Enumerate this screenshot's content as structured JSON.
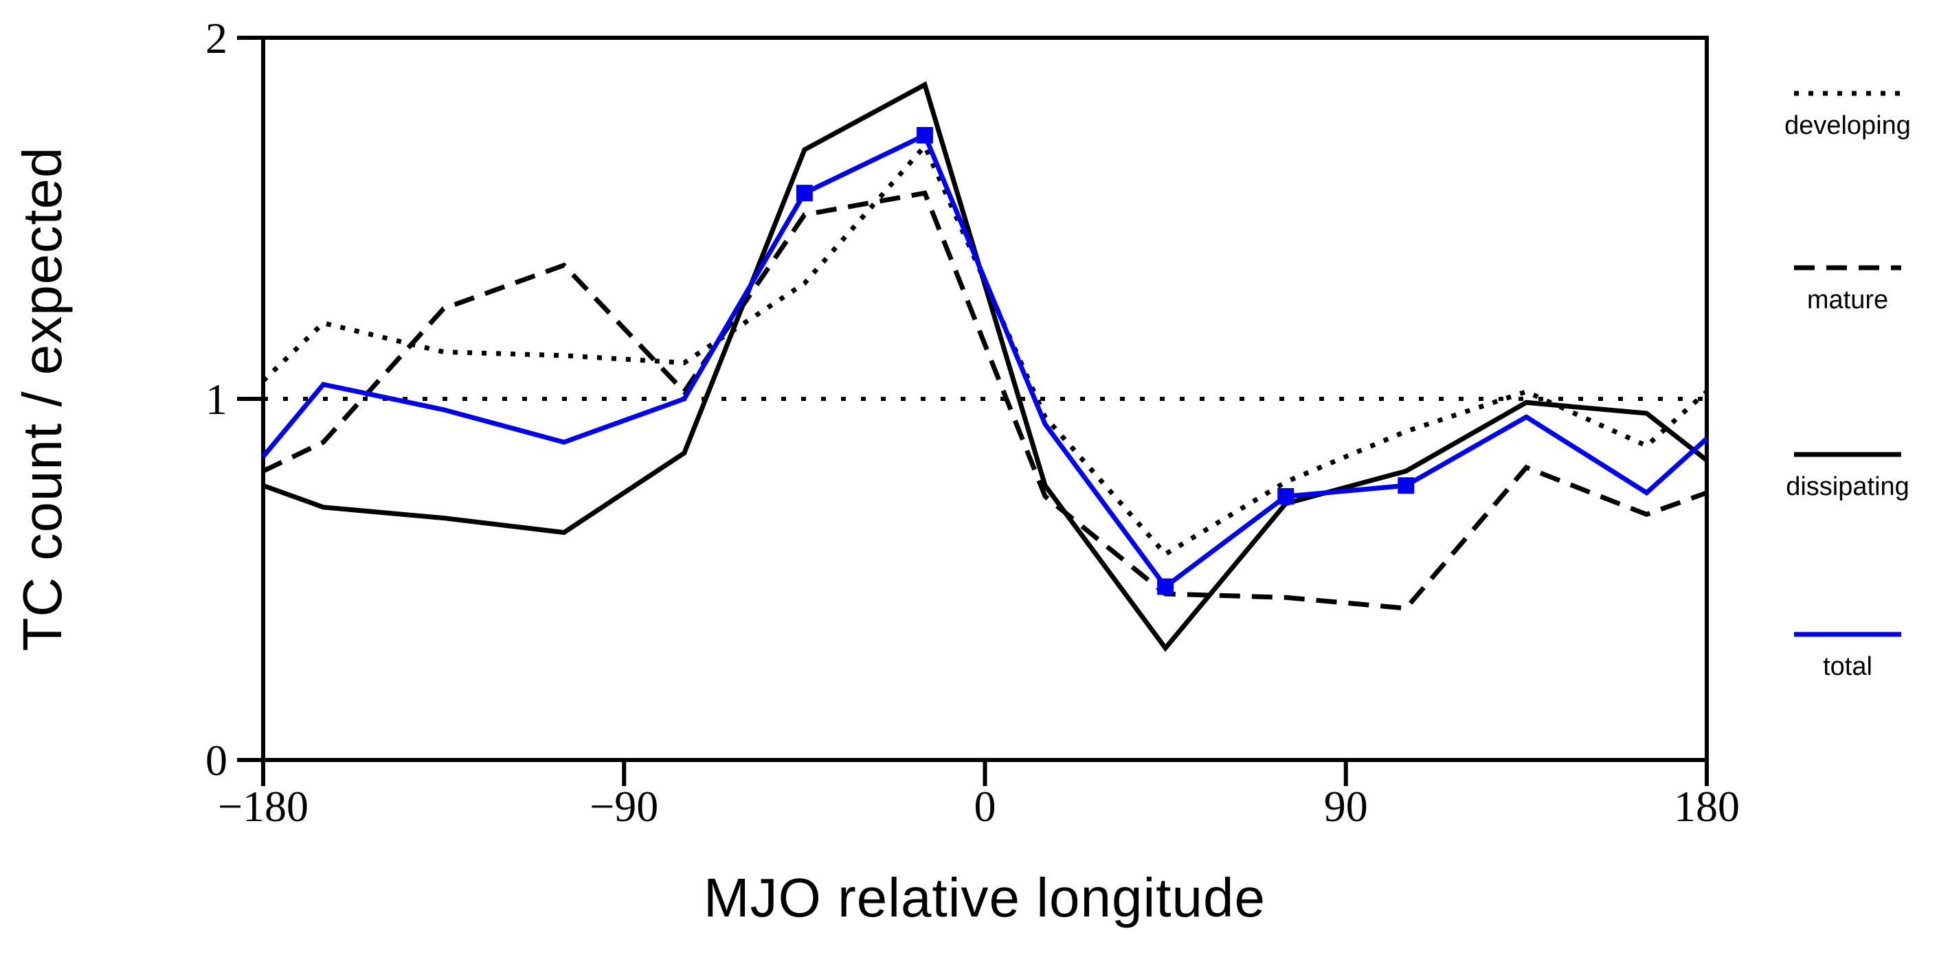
{
  "figure": {
    "background": "#ffffff",
    "axis_color": "#000000"
  },
  "colors": {
    "accent_blue": "#0000ee",
    "black": "#000000"
  },
  "chart_data": {
    "type": "line",
    "title": "",
    "xlabel": "MJO relative longitude",
    "ylabel": "TC count / expected",
    "xlim": [
      -180,
      180
    ],
    "ylim": [
      0,
      2
    ],
    "grid": false,
    "frame": "box",
    "x_ticks": [
      -180,
      -90,
      0,
      90,
      180
    ],
    "x_tick_labels": [
      "−180",
      "−90",
      "0",
      "90",
      "180"
    ],
    "y_ticks": [
      0,
      1,
      2
    ],
    "y_tick_labels": [
      "0",
      "1",
      "2"
    ],
    "reference_line": {
      "y": 1.0,
      "style": "dotted",
      "color": "#000000"
    },
    "x": [
      -180,
      -165,
      -135,
      -105,
      -75,
      -45,
      -15,
      15,
      45,
      75,
      105,
      135,
      165,
      180
    ],
    "series": [
      {
        "name": "developing",
        "style": "dotted",
        "color": "#000000",
        "values": [
          1.05,
          1.21,
          1.13,
          1.12,
          1.1,
          1.32,
          1.7,
          0.95,
          0.57,
          0.77,
          0.91,
          1.02,
          0.87,
          1.02
        ]
      },
      {
        "name": "mature",
        "style": "dashed",
        "color": "#000000",
        "values": [
          0.8,
          0.88,
          1.25,
          1.37,
          1.02,
          1.51,
          1.57,
          0.73,
          0.46,
          0.45,
          0.42,
          0.81,
          0.68,
          0.74
        ]
      },
      {
        "name": "dissipating",
        "style": "solid",
        "color": "#000000",
        "values": [
          0.76,
          0.7,
          0.67,
          0.63,
          0.85,
          1.69,
          1.87,
          0.76,
          0.31,
          0.71,
          0.8,
          0.99,
          0.96,
          0.83
        ]
      },
      {
        "name": "total",
        "style": "solid",
        "color": "#0000ee",
        "values": [
          0.84,
          1.04,
          0.97,
          0.88,
          1.0,
          1.57,
          1.73,
          0.93,
          0.48,
          0.73,
          0.76,
          0.95,
          0.74,
          0.89
        ],
        "markers": {
          "shape": "square",
          "size": 24,
          "x": [
            -45,
            -15,
            45,
            75,
            105
          ],
          "values": [
            1.57,
            1.73,
            0.48,
            0.73,
            0.76
          ]
        }
      }
    ],
    "legend": {
      "position": "right",
      "items": [
        "developing",
        "mature",
        "dissipating",
        "total"
      ]
    }
  }
}
